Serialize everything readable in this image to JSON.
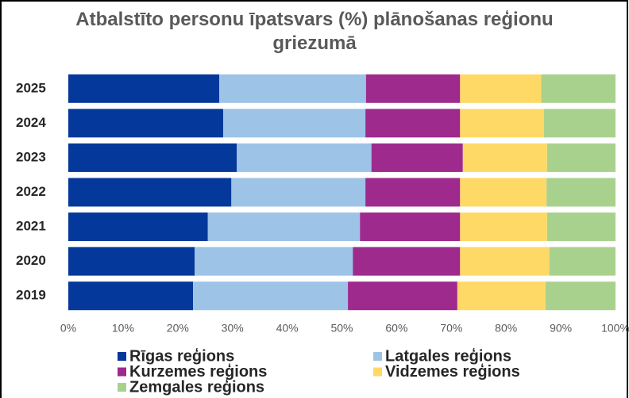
{
  "chart_data": {
    "type": "stacked_barh",
    "title": "Atbalstīto personu īpatsvars (%) plānošanas reģionu griezumā",
    "categories": [
      "2025",
      "2024",
      "2023",
      "2022",
      "2021",
      "2020",
      "2019"
    ],
    "series": [
      {
        "name": "Rīgas reģions",
        "color": "#04389a",
        "values": [
          27.6,
          28.3,
          30.8,
          29.8,
          25.5,
          23.1,
          22.8
        ]
      },
      {
        "name": "Latgales reģions",
        "color": "#9dc3e6",
        "values": [
          26.8,
          26.0,
          24.6,
          24.5,
          27.8,
          28.9,
          28.3
        ]
      },
      {
        "name": "Kurzemes reģions",
        "color": "#9e2a8e",
        "values": [
          17.2,
          17.3,
          16.7,
          17.3,
          18.3,
          19.6,
          20.0
        ]
      },
      {
        "name": "Vidzemes reģions",
        "color": "#ffd966",
        "values": [
          14.8,
          15.3,
          15.4,
          15.8,
          15.9,
          16.3,
          16.1
        ]
      },
      {
        "name": "Zemgales reģions",
        "color": "#a9d18e",
        "values": [
          13.6,
          13.1,
          12.5,
          12.6,
          12.5,
          12.1,
          12.8
        ]
      }
    ],
    "xlim": [
      0,
      100
    ],
    "xticks": [
      {
        "value": 0,
        "label": "0%"
      },
      {
        "value": 10,
        "label": "10%"
      },
      {
        "value": 20,
        "label": "20%"
      },
      {
        "value": 30,
        "label": "30%"
      },
      {
        "value": 40,
        "label": "40%"
      },
      {
        "value": 50,
        "label": "50%"
      },
      {
        "value": 60,
        "label": "60%"
      },
      {
        "value": 70,
        "label": "70%"
      },
      {
        "value": 80,
        "label": "80%"
      },
      {
        "value": 90,
        "label": "90%"
      },
      {
        "value": 100,
        "label": "100%"
      }
    ],
    "legend": "bottom"
  }
}
